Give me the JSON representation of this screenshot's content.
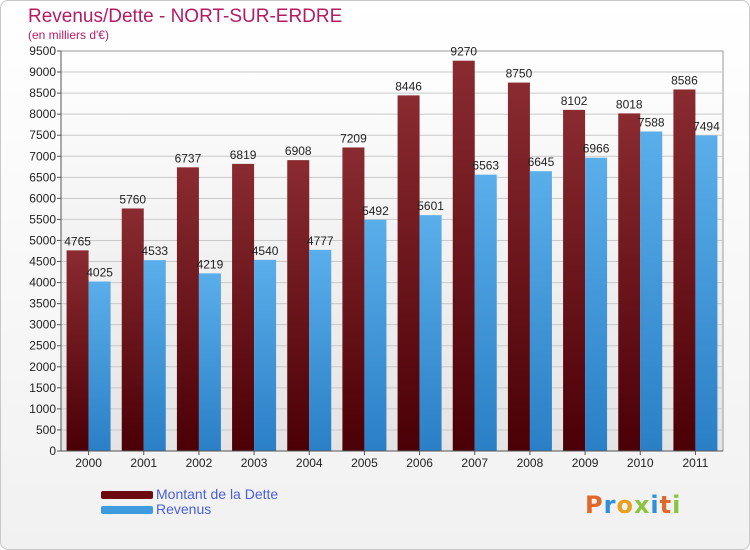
{
  "title": "Revenus/Dette - NORT-SUR-ERDRE",
  "subtitle": "(en milliers d'€)",
  "legend": [
    {
      "label": "Montant de la Dette",
      "color": "#6e0a12"
    },
    {
      "label": "Revenus",
      "color": "#3f9be0"
    }
  ],
  "logo": {
    "text": "Proxiti",
    "colors": [
      "#e0692a",
      "#2f8fd8",
      "#e8a020",
      "#8bc53f",
      "#2f8fd8",
      "#e0692a",
      "#8bc53f"
    ]
  },
  "chart_data": {
    "type": "bar",
    "categories": [
      "2000",
      "2001",
      "2002",
      "2003",
      "2004",
      "2005",
      "2006",
      "2007",
      "2008",
      "2009",
      "2010",
      "2011"
    ],
    "series": [
      {
        "name": "Montant de la Dette",
        "values": [
          4765,
          5760,
          6737,
          6819,
          6908,
          7209,
          8446,
          9270,
          8750,
          8102,
          8018,
          8586
        ]
      },
      {
        "name": "Revenus",
        "values": [
          4025,
          4533,
          4219,
          4540,
          4777,
          5492,
          5601,
          6563,
          6645,
          6966,
          7588,
          7494
        ]
      }
    ],
    "ylim": [
      0,
      9500
    ],
    "ytick_step": 500,
    "grid": true,
    "legend_position": "bottom-left"
  }
}
